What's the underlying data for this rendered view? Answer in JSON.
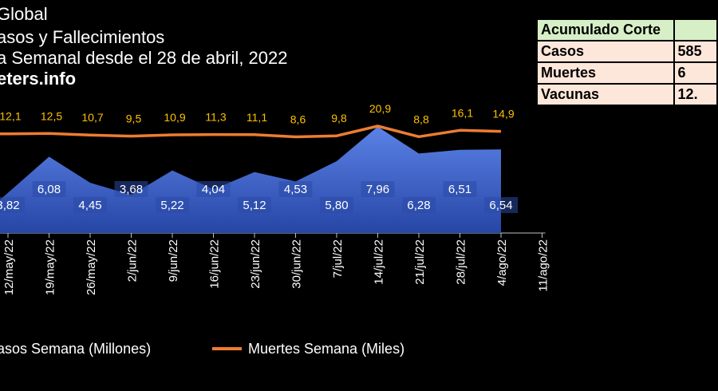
{
  "header": {
    "line1": "Global",
    "line2": "asos y Fallecimientos",
    "line3": "a Semanal desde el 28 de abril, 2022",
    "line4": "eters.info"
  },
  "summary_table": {
    "header_label": "Acumulado Corte",
    "header_value": "",
    "rows": [
      {
        "label": "Casos",
        "value": "585"
      },
      {
        "label": "Muertes",
        "value": "6"
      },
      {
        "label": "Vacunas",
        "value": "12."
      }
    ]
  },
  "legend": {
    "cases": "asos Semana (Millones)",
    "deaths": "Muertes Semana (Miles)"
  },
  "colors": {
    "area_top": "#5b82e6",
    "area_bottom": "#2746a6",
    "deaths_line": "#ed7d31",
    "deaths_label": "#ffc000",
    "cases_label": "#ffffff"
  },
  "chart_data": {
    "type": "area",
    "categories": [
      "12/may/22",
      "19/may/22",
      "26/may/22",
      "2/jun/22",
      "9/jun/22",
      "16/jun/22",
      "23/jun/22",
      "30/jun/22",
      "7/jul/22",
      "14/jul/22",
      "21/jul/22",
      "28/jul/22",
      "4/ago/22",
      "11/ago/22"
    ],
    "series": [
      {
        "name": "asos Semana (Millones)",
        "type": "area",
        "values": [
          3.82,
          6.08,
          4.45,
          3.68,
          5.22,
          4.04,
          5.12,
          4.53,
          5.8,
          7.96,
          6.28,
          6.51,
          6.54,
          null
        ],
        "labels": [
          "3,82",
          "6,08",
          "4,45",
          "3,68",
          "5,22",
          "4,04",
          "5,12",
          "4,53",
          "5,80",
          "7,96",
          "6,28",
          "6,51",
          "6,54",
          ""
        ]
      },
      {
        "name": "Muertes Semana (Miles)",
        "type": "line",
        "values": [
          12.1,
          12.5,
          10.7,
          9.5,
          10.9,
          11.3,
          11.1,
          8.6,
          9.8,
          20.9,
          8.8,
          16.1,
          14.9,
          null
        ],
        "labels": [
          "12,1",
          "12,5",
          "10,7",
          "9,5",
          "10,9",
          "11,3",
          "11,1",
          "8,6",
          "9,8",
          "20,9",
          "8,8",
          "16,1",
          "14,9",
          ""
        ]
      }
    ]
  }
}
